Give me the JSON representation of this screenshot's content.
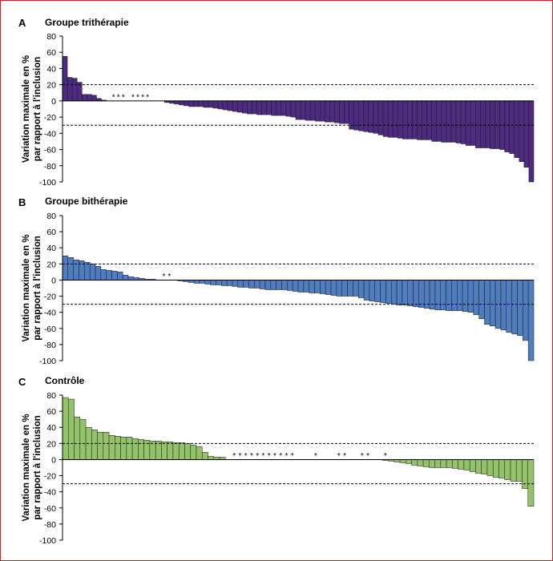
{
  "colors": {
    "border": "#d61f2a",
    "axis": "#000000"
  },
  "chart_data": [
    {
      "type": "bar",
      "panel_label": "A",
      "title": "Groupe trithérapie",
      "ylabel_lines": [
        "Variation maximale en %",
        "par rapport à l'inclusion"
      ],
      "ylim": [
        -100,
        80
      ],
      "yticks": [
        80,
        60,
        40,
        20,
        0,
        -20,
        -40,
        -60,
        -80,
        -100
      ],
      "ytick_labels": [
        "80",
        "60",
        "40",
        "20",
        "0",
        "-20",
        "-40",
        "-60",
        "-80",
        "-100"
      ],
      "reference_lines": [
        20,
        -30
      ],
      "grid": false,
      "bar_color": "#4d2b80",
      "marker": "*",
      "values": [
        55,
        29,
        28,
        23,
        8,
        8,
        7,
        3,
        1,
        0,
        0,
        0,
        0,
        0,
        0,
        0,
        0,
        0,
        0,
        0,
        0,
        -2,
        -3,
        -4,
        -5,
        -6,
        -7,
        -7,
        -7,
        -8,
        -8,
        -9,
        -10,
        -11,
        -12,
        -13,
        -14,
        -15,
        -16,
        -16,
        -17,
        -17,
        -17,
        -18,
        -18,
        -18,
        -19,
        -20,
        -23,
        -23,
        -24,
        -24,
        -25,
        -25,
        -26,
        -26,
        -27,
        -28,
        -28,
        -35,
        -36,
        -37,
        -38,
        -39,
        -40,
        -42,
        -44,
        -45,
        -45,
        -46,
        -47,
        -47,
        -47,
        -48,
        -48,
        -48,
        -50,
        -50,
        -51,
        -51,
        -51,
        -52,
        -53,
        -55,
        -55,
        -58,
        -58,
        -58,
        -59,
        -59,
        -60,
        -63,
        -65,
        -70,
        -75,
        -82,
        -100
      ],
      "starred": [
        10,
        11,
        12,
        14,
        15,
        16,
        17
      ]
    },
    {
      "type": "bar",
      "panel_label": "B",
      "title": "Groupe bithérapie",
      "ylabel_lines": [
        "Variation maximale en %",
        "par rapport à l'inclusion"
      ],
      "ylim": [
        -100,
        80
      ],
      "yticks": [
        80,
        60,
        40,
        20,
        0,
        -20,
        -40,
        -60,
        -80,
        -100
      ],
      "ytick_labels": [
        "80",
        "60",
        "40",
        "20",
        "0",
        "-20",
        "-40",
        "-60",
        "-80",
        "-100"
      ],
      "reference_lines": [
        20,
        -30
      ],
      "grid": false,
      "bar_color": "#4f7dbe",
      "marker": "*",
      "values": [
        30,
        28,
        25,
        24,
        22,
        20,
        17,
        13,
        12,
        11,
        10,
        6,
        4,
        3,
        2,
        1,
        1,
        0,
        0,
        0,
        0,
        -1,
        -2,
        -3,
        -4,
        -4,
        -5,
        -6,
        -6,
        -7,
        -7,
        -8,
        -9,
        -9,
        -10,
        -10,
        -11,
        -12,
        -12,
        -12,
        -12,
        -13,
        -14,
        -15,
        -15,
        -16,
        -16,
        -17,
        -18,
        -19,
        -20,
        -20,
        -20,
        -20,
        -22,
        -25,
        -26,
        -27,
        -28,
        -29,
        -30,
        -31,
        -31,
        -32,
        -33,
        -34,
        -35,
        -36,
        -37,
        -37,
        -38,
        -38,
        -38,
        -39,
        -40,
        -43,
        -48,
        -55,
        -57,
        -60,
        -62,
        -65,
        -67,
        -69,
        -75,
        -100
      ],
      "starred": [
        18,
        19
      ]
    },
    {
      "type": "bar",
      "panel_label": "C",
      "title": "Contrôle",
      "ylabel_lines": [
        "Variation maximale en %",
        "par rapport à l'inclusion"
      ],
      "ylim": [
        -100,
        80
      ],
      "yticks": [
        80,
        60,
        40,
        20,
        0,
        -20,
        -40,
        -60,
        -80,
        -100
      ],
      "ytick_labels": [
        "80",
        "60",
        "40",
        "20",
        "0",
        "-20",
        "-40",
        "-60",
        "-80",
        "-100"
      ],
      "reference_lines": [
        20,
        -30
      ],
      "grid": false,
      "bar_color": "#93c26a",
      "marker": "*",
      "values": [
        77,
        75,
        53,
        50,
        40,
        37,
        34,
        34,
        30,
        29,
        28,
        28,
        26,
        25,
        24,
        23,
        23,
        22,
        22,
        21,
        21,
        20,
        18,
        16,
        9,
        4,
        3,
        3,
        0,
        0,
        0,
        0,
        0,
        0,
        0,
        0,
        0,
        0,
        0,
        0,
        0,
        0,
        0,
        0,
        0,
        0,
        0,
        0,
        0,
        0,
        0,
        0,
        0,
        0,
        0,
        -1,
        -2,
        -3,
        -4,
        -5,
        -7,
        -8,
        -9,
        -10,
        -10,
        -10,
        -10,
        -11,
        -12,
        -13,
        -15,
        -17,
        -18,
        -20,
        -22,
        -23,
        -25,
        -27,
        -27,
        -36,
        -58
      ],
      "starred": [
        29,
        30,
        31,
        32,
        33,
        34,
        35,
        36,
        37,
        38,
        39,
        43,
        47,
        48,
        51,
        52,
        55
      ]
    }
  ]
}
